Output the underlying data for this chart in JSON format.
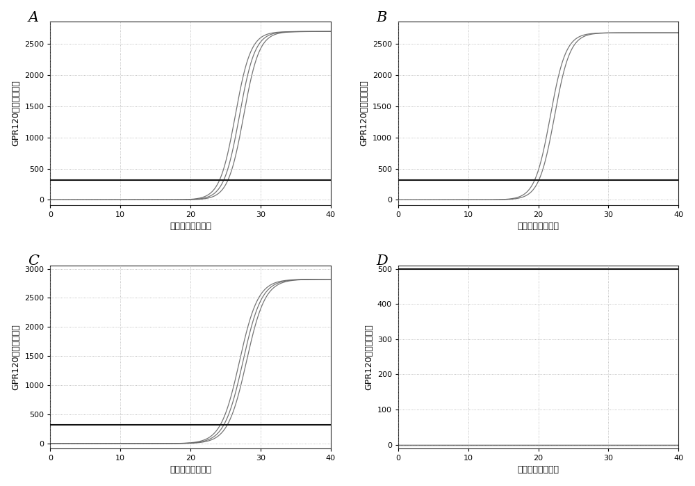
{
  "panels": [
    {
      "label": "A",
      "sigmoid_midpoint": 27.0,
      "sigmoid_steepness": 0.9,
      "y_max": 2700,
      "y_axis_max": 2800,
      "y_lim_min": -80,
      "y_ticks": [
        0,
        500,
        1000,
        1500,
        2000,
        2500
      ],
      "threshold_y": 320,
      "curve_offsets": [
        -0.6,
        0.0,
        0.6
      ],
      "flat_line_y": 320
    },
    {
      "label": "B",
      "sigmoid_midpoint": 22.0,
      "sigmoid_steepness": 0.9,
      "y_max": 2680,
      "y_axis_max": 2800,
      "y_lim_min": -80,
      "y_ticks": [
        0,
        500,
        1000,
        1500,
        2000,
        2500
      ],
      "threshold_y": 320,
      "curve_offsets": [
        -0.3,
        0.3
      ],
      "flat_line_y": 320
    },
    {
      "label": "C",
      "sigmoid_midpoint": 27.5,
      "sigmoid_steepness": 0.75,
      "y_max": 2820,
      "y_axis_max": 3000,
      "y_lim_min": -80,
      "y_ticks": [
        0,
        500,
        1000,
        1500,
        2000,
        2500,
        3000
      ],
      "threshold_y": 320,
      "curve_offsets": [
        -0.5,
        0.0,
        0.5
      ],
      "flat_line_y": 320
    },
    {
      "label": "D",
      "sigmoid_midpoint": 60,
      "sigmoid_steepness": 0.9,
      "y_max": 5,
      "y_axis_max": 500,
      "y_lim_min": -10,
      "y_ticks": [
        0,
        100,
        200,
        300,
        400,
        500
      ],
      "threshold_y": 500,
      "curve_offsets": [
        -0.3,
        0.0,
        0.3
      ],
      "flat_line_y": 500
    }
  ],
  "x_min": 0,
  "x_max": 40,
  "x_ticks": [
    0,
    10,
    20,
    30,
    40
  ],
  "xlabel": "扩增循环数（次）",
  "ylabel": "GPR120相对荧光强度",
  "line_color": "#666666",
  "threshold_color": "#111111",
  "bg_color": "#ffffff",
  "grid_color": "#999999",
  "fig_bg": "#ffffff"
}
